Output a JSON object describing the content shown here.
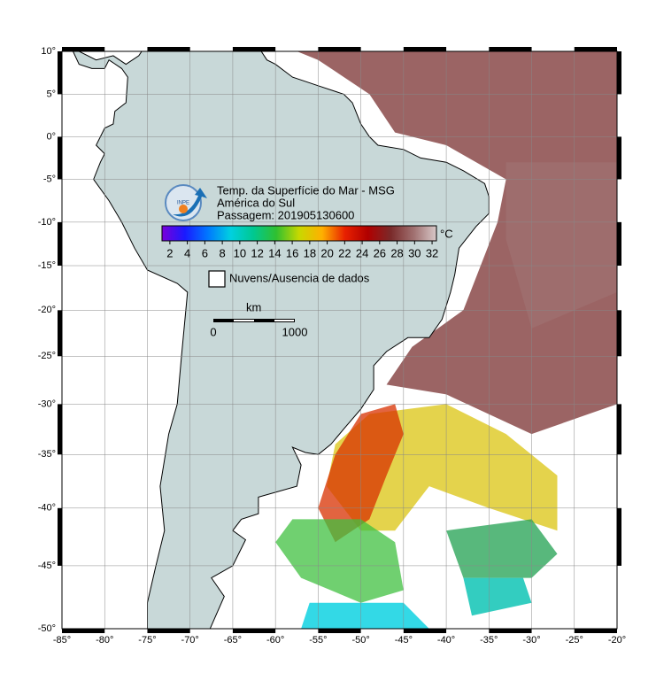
{
  "map": {
    "lonlim": [
      -85,
      -20
    ],
    "latlim": [
      -50,
      10
    ],
    "lonticks": [
      {
        "value": -85,
        "label": "-85°"
      },
      {
        "value": -80,
        "label": "-80°"
      },
      {
        "value": -75,
        "label": "-75°"
      },
      {
        "value": -70,
        "label": "-70°"
      },
      {
        "value": -65,
        "label": "-65°"
      },
      {
        "value": -60,
        "label": "-60°"
      },
      {
        "value": -55,
        "label": "-55°"
      },
      {
        "value": -50,
        "label": "-50°"
      },
      {
        "value": -45,
        "label": "-45°"
      },
      {
        "value": -40,
        "label": "-40°"
      },
      {
        "value": -35,
        "label": "-35°"
      },
      {
        "value": -30,
        "label": "-30°"
      },
      {
        "value": -25,
        "label": "-25°"
      },
      {
        "value": -20,
        "label": "-20°"
      }
    ],
    "latticks": [
      {
        "value": 10,
        "label": "10°"
      },
      {
        "value": 5,
        "label": "5°"
      },
      {
        "value": 0,
        "label": "0°"
      },
      {
        "value": -5,
        "label": "-5°"
      },
      {
        "value": -10,
        "label": "-10°"
      },
      {
        "value": -15,
        "label": "-15°"
      },
      {
        "value": -20,
        "label": "-20°"
      },
      {
        "value": -25,
        "label": "-25°"
      },
      {
        "value": -30,
        "label": "-30°"
      },
      {
        "value": -35,
        "label": "-35°"
      },
      {
        "value": -40,
        "label": "-40°"
      },
      {
        "value": -45,
        "label": "-45°"
      },
      {
        "value": -50,
        "label": "-50°"
      }
    ],
    "grid": true,
    "logo": "INPE",
    "title": [
      "Temp. da Superfície do Mar - MSG",
      "América do Sul",
      "Passagem: 201905130600"
    ],
    "colorbar": {
      "range": [
        1.1,
        32.5
      ],
      "ticks": [
        2,
        4,
        6,
        8,
        10,
        12,
        14,
        16,
        18,
        20,
        22,
        24,
        26,
        28,
        30,
        32
      ],
      "unit": "°C",
      "colors": [
        "#7a00d9",
        "#1a1aff",
        "#0077ff",
        "#00d0e0",
        "#00c890",
        "#30c030",
        "#c8d800",
        "#ffb000",
        "#e82000",
        "#b00000",
        "#7a2a2a",
        "#a07070",
        "#d8c8c8"
      ]
    },
    "legend": "Nuvens/Ausencia de dados",
    "scale": {
      "unit": "km",
      "labels": [
        "0",
        "1000"
      ]
    }
  }
}
